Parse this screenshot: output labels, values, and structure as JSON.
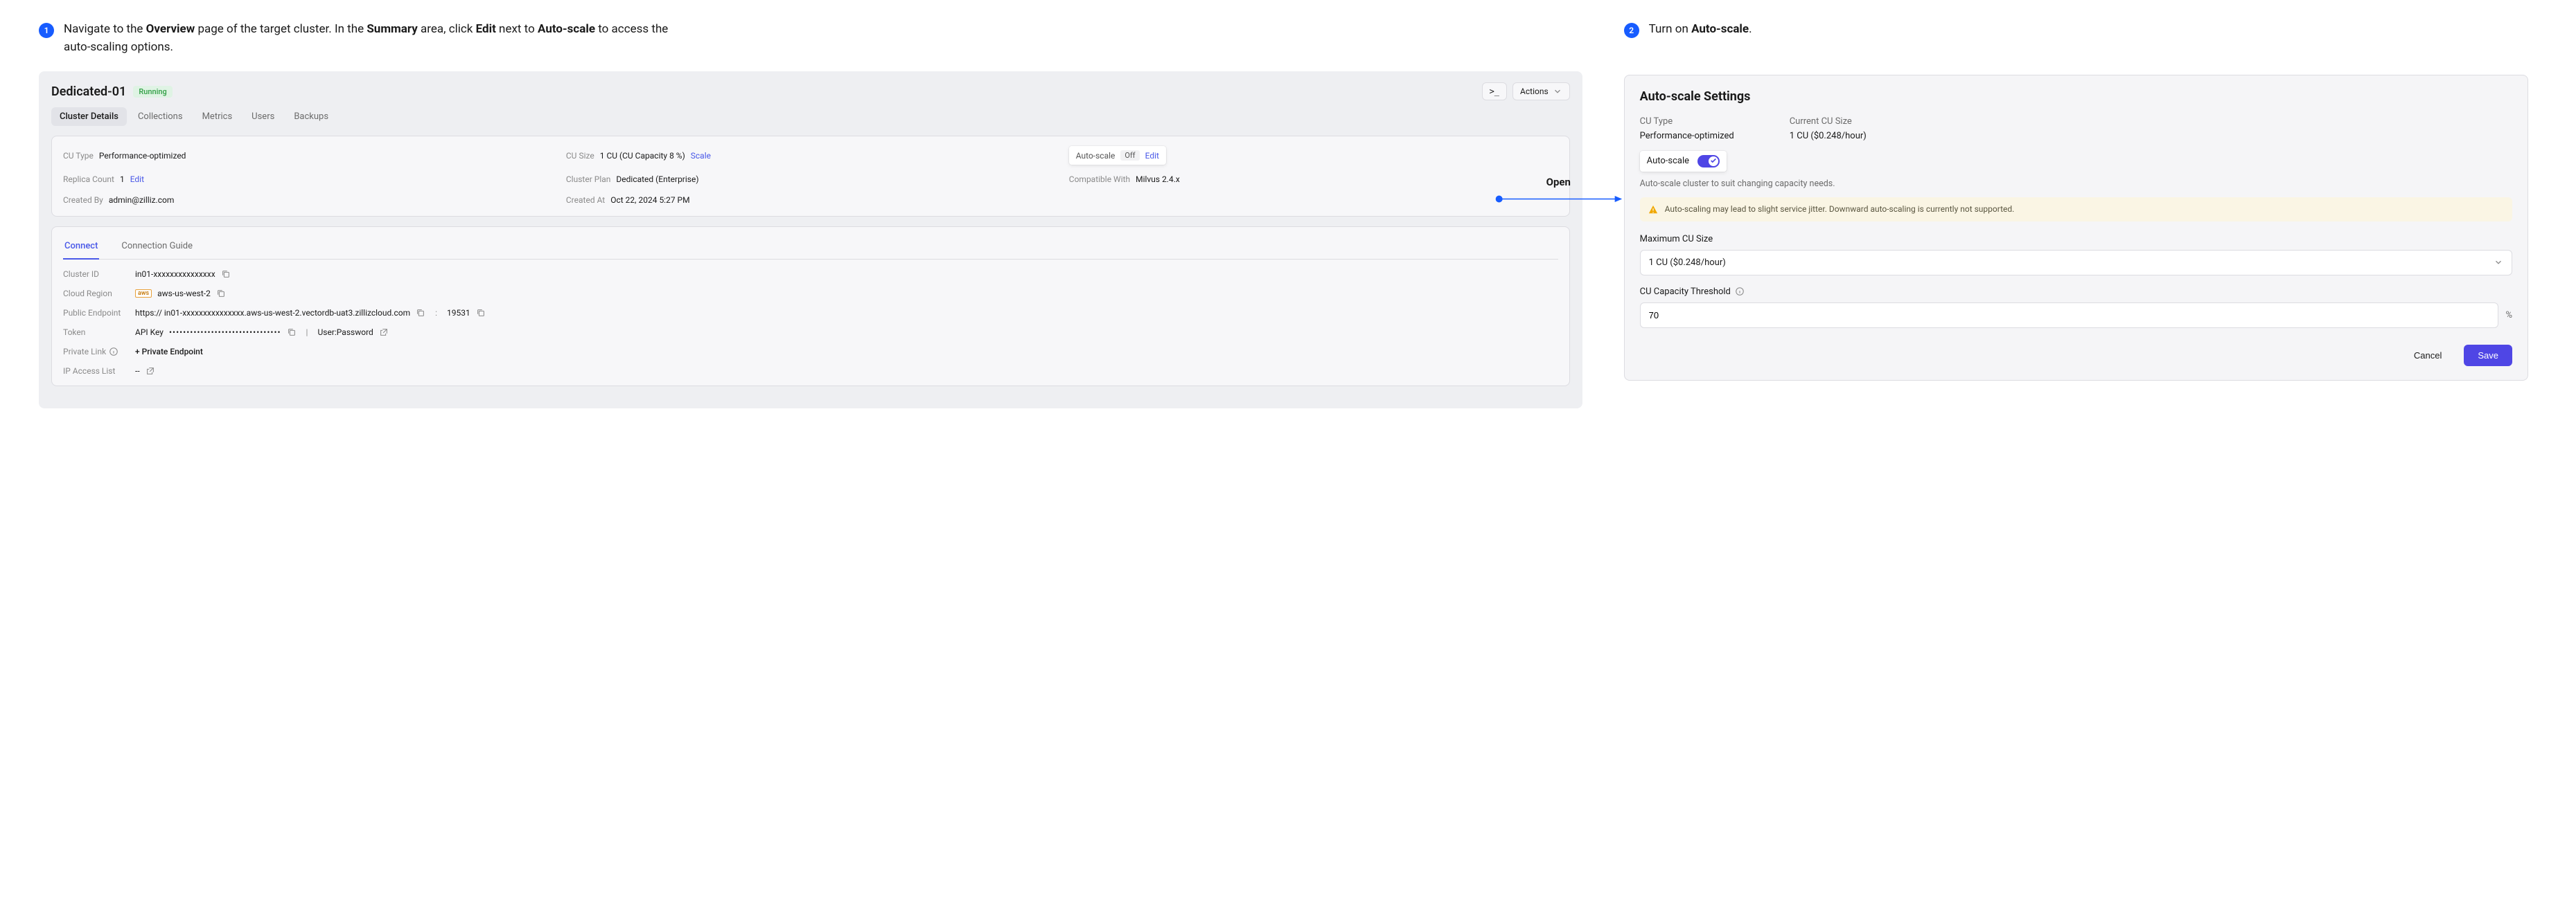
{
  "step1": {
    "num": "1",
    "text_parts": [
      "Navigate to the ",
      "Overview",
      " page of the target cluster. In the ",
      "Summary",
      " area, click ",
      "Edit",
      " next to ",
      "Auto-scale",
      " to access the auto-scaling options."
    ]
  },
  "step2": {
    "num": "2",
    "text_parts": [
      "Turn on ",
      "Auto-scale",
      "."
    ]
  },
  "cluster": {
    "name": "Dedicated-01",
    "status": "Running",
    "terminal_glyph": ">_",
    "actions_label": "Actions"
  },
  "main_tabs": [
    "Cluster Details",
    "Collections",
    "Metrics",
    "Users",
    "Backups"
  ],
  "summary": {
    "cu_type": {
      "k": "CU Type",
      "v": "Performance-optimized"
    },
    "cu_size": {
      "k": "CU Size",
      "v": "1 CU (CU Capacity 8 %)",
      "action": "Scale"
    },
    "auto_scale": {
      "k": "Auto-scale",
      "off": "Off",
      "action": "Edit"
    },
    "replica": {
      "k": "Replica Count",
      "v": "1",
      "action": "Edit"
    },
    "plan": {
      "k": "Cluster Plan",
      "v": "Dedicated (Enterprise)"
    },
    "compat": {
      "k": "Compatible With",
      "v": "Milvus 2.4.x"
    },
    "created_by": {
      "k": "Created By",
      "v": "admin@zilliz.com"
    },
    "created_at": {
      "k": "Created At",
      "v": "Oct 22, 2024 5:27 PM"
    }
  },
  "conn_tabs": [
    "Connect",
    "Connection Guide"
  ],
  "conn": {
    "cluster_id": {
      "k": "Cluster ID",
      "v": "in01-xxxxxxxxxxxxxxx"
    },
    "region": {
      "k": "Cloud Region",
      "tag": "aws",
      "v": "aws-us-west-2"
    },
    "endpoint": {
      "k": "Public Endpoint",
      "v": "https:// in01-xxxxxxxxxxxxxxx.aws-us-west-2.vectordb-uat3.zillizcloud.com",
      "port": "19531"
    },
    "token": {
      "k": "Token",
      "api": "API Key",
      "mask": "••••••••••••••••••••••••••••••••",
      "userpass": "User:Password"
    },
    "private": {
      "k": "Private Link",
      "v": "+  Private Endpoint"
    },
    "ip": {
      "k": "IP Access List",
      "v": "--"
    }
  },
  "open_label": "Open",
  "rp": {
    "title": "Auto-scale Settings",
    "cu_type_lbl": "CU Type",
    "cu_type_val": "Performance-optimized",
    "cur_size_lbl": "Current CU Size",
    "cur_size_val": "1 CU ($0.248/hour)",
    "toggle_lbl": "Auto-scale",
    "desc": "Auto-scale cluster to suit changing capacity needs.",
    "warning": "Auto-scaling may lead to slight service jitter. Downward auto-scaling is currently not supported.",
    "max_lbl": "Maximum CU Size",
    "max_val": "1 CU ($0.248/hour)",
    "thr_lbl": "CU Capacity Threshold",
    "thr_val": "70",
    "pct": "%",
    "cancel": "Cancel",
    "save": "Save"
  }
}
